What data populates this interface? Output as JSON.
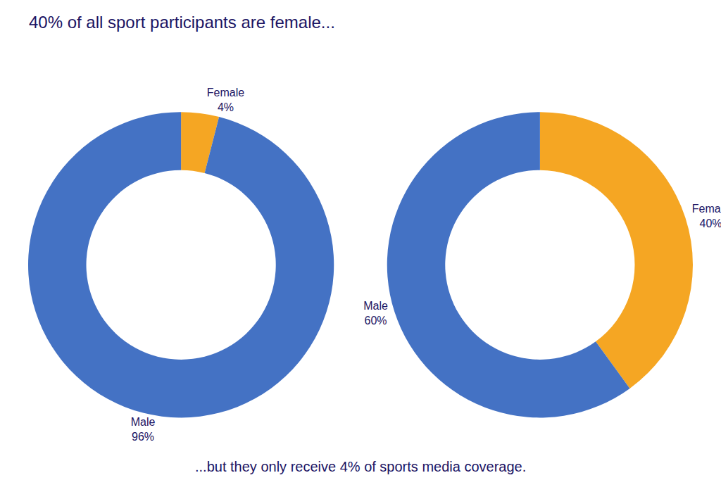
{
  "chart_data": [
    {
      "type": "pie",
      "title": "40% of all sport participants are female...",
      "subtitle": "...but they only receive 4% of sports media coverage.",
      "categories": [
        "Female",
        "Male"
      ],
      "values": [
        4,
        96
      ],
      "value_labels": [
        "4%",
        "96%"
      ],
      "colors": [
        "#F5A623",
        "#4472C4"
      ],
      "data_labels": true
    },
    {
      "type": "pie",
      "categories": [
        "Female",
        "Male"
      ],
      "values": [
        40,
        60
      ],
      "value_labels": [
        "40%",
        "60%"
      ],
      "colors": [
        "#F5A623",
        "#4472C4"
      ],
      "data_labels": true
    }
  ]
}
